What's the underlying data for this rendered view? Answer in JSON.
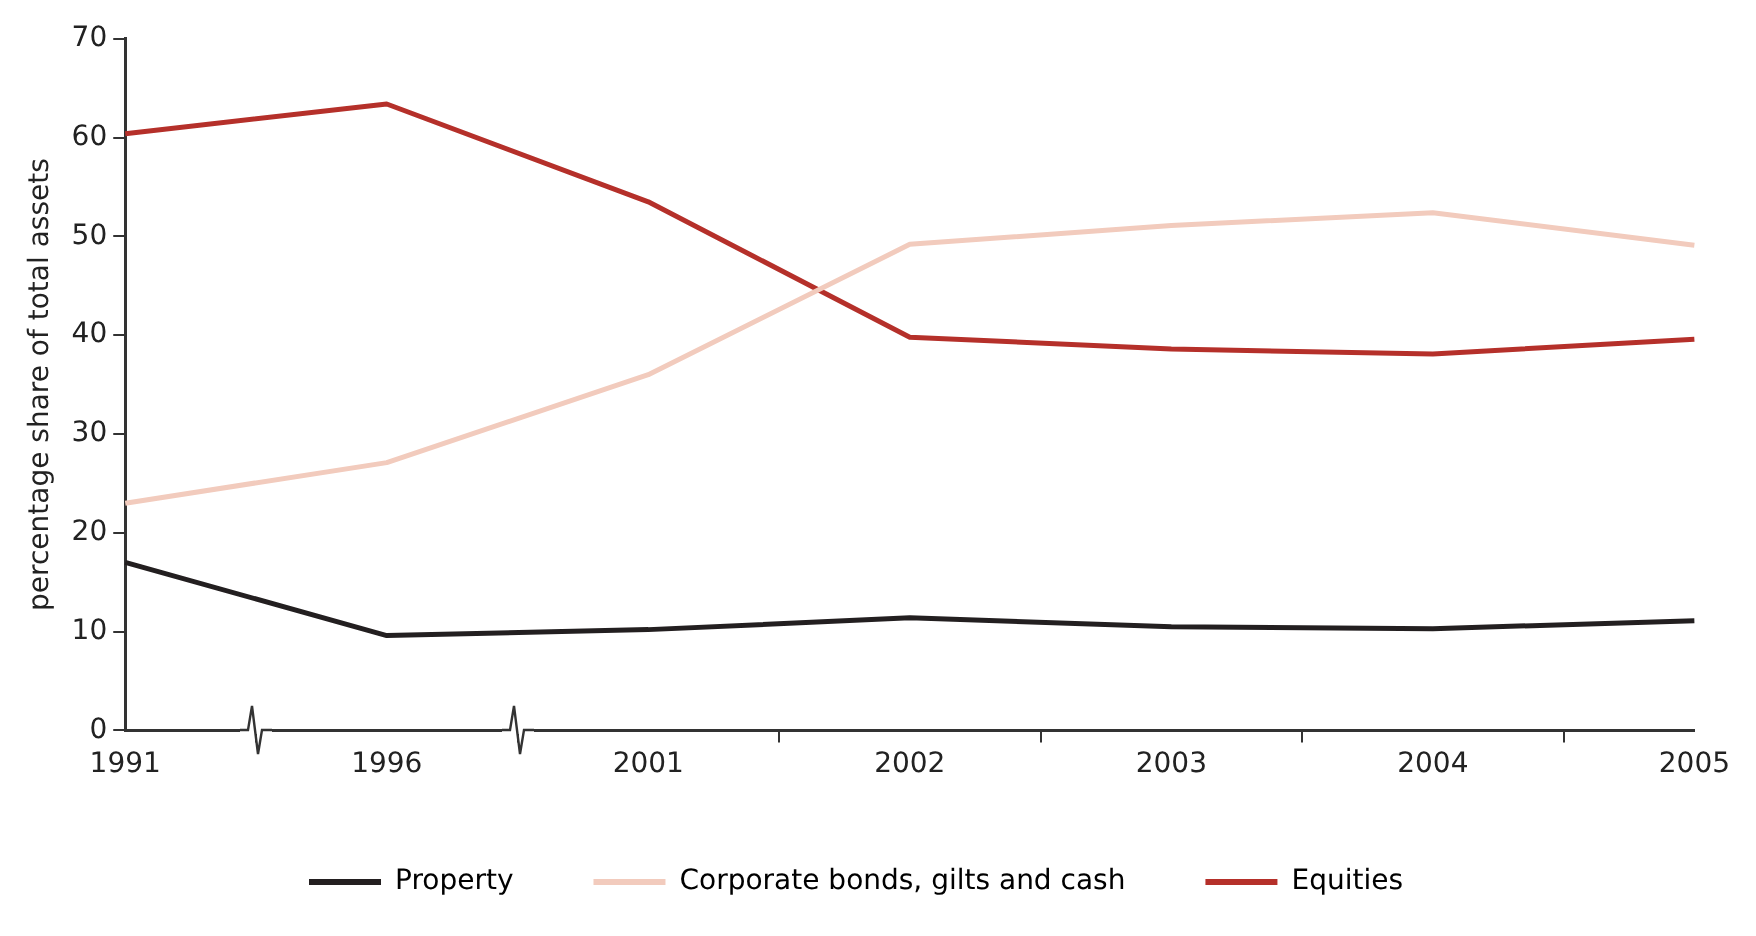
{
  "chart_data": {
    "type": "line",
    "ylabel": "percentage share of total assets",
    "categories": [
      "1991",
      "1996",
      "2001",
      "2002",
      "2003",
      "2004",
      "2005"
    ],
    "series": [
      {
        "name": "Property",
        "color": "#231f20",
        "values": [
          17.0,
          9.6,
          10.2,
          11.4,
          10.5,
          10.3,
          11.1
        ]
      },
      {
        "name": "Corporate bonds, gilts and cash",
        "color": "#f2cbbd",
        "values": [
          23.0,
          27.1,
          36.0,
          49.2,
          51.1,
          52.4,
          49.1
        ]
      },
      {
        "name": "Equities",
        "color": "#b5302a",
        "values": [
          60.4,
          63.4,
          53.5,
          39.8,
          38.6,
          38.1,
          39.6
        ]
      }
    ],
    "ylim": [
      0,
      70
    ],
    "yticks": [
      0,
      10,
      20,
      30,
      40,
      50,
      60,
      70
    ],
    "grid": false,
    "legend": "bottom",
    "marker": "none",
    "line_style": "solid"
  }
}
